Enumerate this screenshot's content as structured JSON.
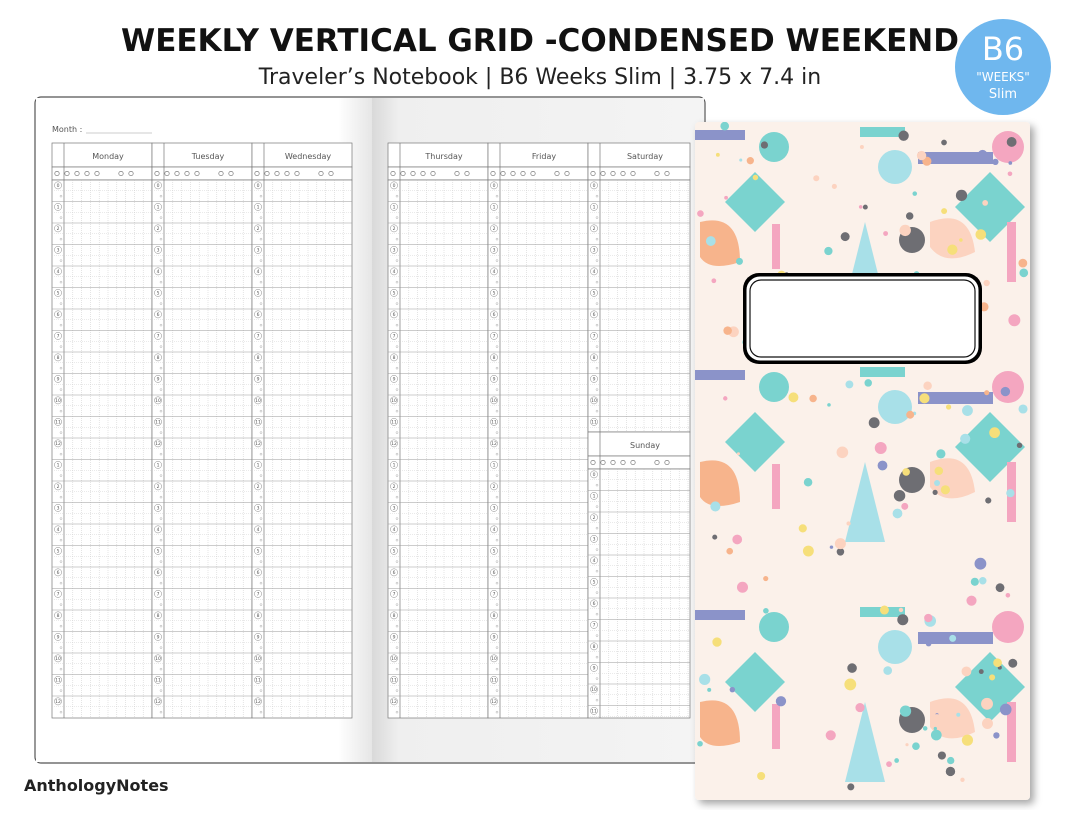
{
  "header": {
    "title": "WEEKLY VERTICAL GRID -CONDENSED WEEKEND",
    "subtitle": "Traveler’s Notebook | B6 Weeks Slim |  3.75 x 7.4 in"
  },
  "badge": {
    "size": "B6",
    "name": "\"WEEKS\"",
    "variant": "Slim"
  },
  "planner": {
    "month_label": "Month :",
    "left_days": [
      "Monday",
      "Tuesday",
      "Wednesday"
    ],
    "right_days": [
      "Thursday",
      "Friday",
      "Saturday"
    ],
    "weekend_day": "Sunday",
    "hours": [
      "0",
      "1",
      "2",
      "3",
      "4",
      "5",
      "6",
      "7",
      "8",
      "9",
      "10",
      "11",
      "12",
      "1",
      "2",
      "3",
      "4",
      "5",
      "6",
      "7",
      "8",
      "9",
      "10",
      "11",
      "12"
    ]
  },
  "brand": "AnthologyNotes"
}
